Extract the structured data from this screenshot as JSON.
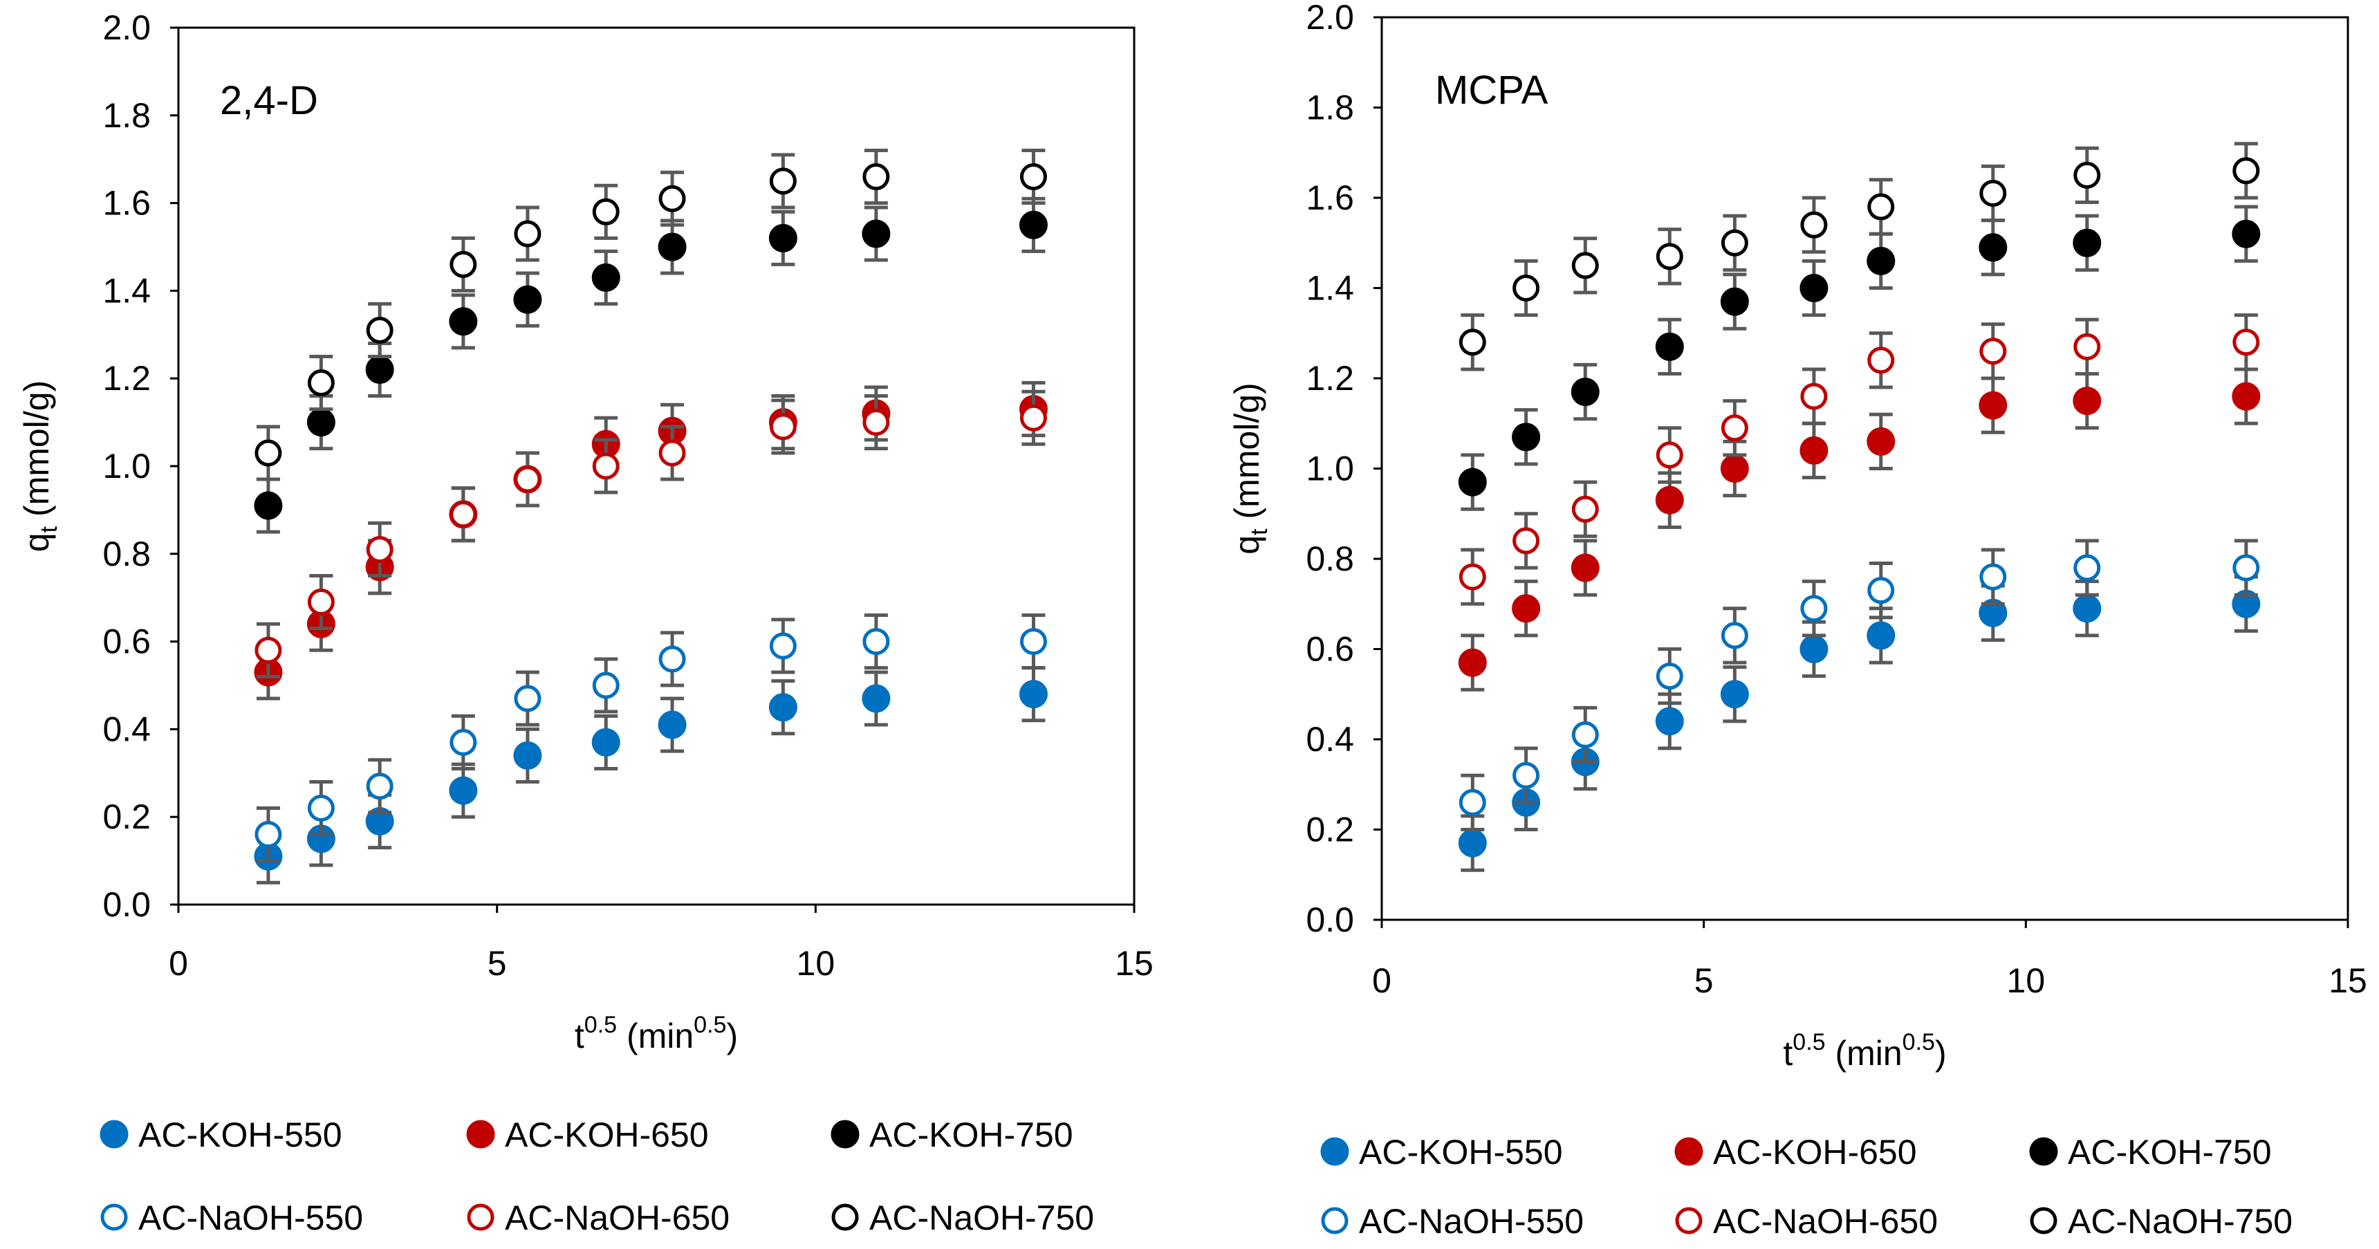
{
  "chart_data": [
    {
      "type": "scatter",
      "title": "2,4-D",
      "xlabel_base": "t",
      "xlabel_sup": "0.5",
      "xlabel_unit_open": " (min",
      "xlabel_unit_sup": "0.5",
      "xlabel_unit_close": ")",
      "ylabel_base": "q",
      "ylabel_sub": "t",
      "ylabel_unit": " (mmol/g)",
      "xlim": [
        0,
        15
      ],
      "ylim": [
        0,
        2.0
      ],
      "xticks": [
        "0",
        "5",
        "10",
        "15"
      ],
      "yticks": [
        "0.0",
        "0.2",
        "0.4",
        "0.6",
        "0.8",
        "1.0",
        "1.2",
        "1.4",
        "1.6",
        "1.8",
        "2.0"
      ],
      "x": [
        1.41,
        2.24,
        3.16,
        4.47,
        5.48,
        6.71,
        7.75,
        9.49,
        10.95,
        13.42
      ],
      "error": 0.06,
      "series": [
        {
          "name": "AC-KOH-550",
          "values": [
            0.11,
            0.15,
            0.19,
            0.26,
            0.34,
            0.37,
            0.41,
            0.45,
            0.47,
            0.48
          ]
        },
        {
          "name": "AC-KOH-650",
          "values": [
            0.53,
            0.64,
            0.77,
            0.89,
            0.97,
            1.05,
            1.08,
            1.1,
            1.12,
            1.13
          ]
        },
        {
          "name": "AC-KOH-750",
          "values": [
            0.91,
            1.1,
            1.22,
            1.33,
            1.38,
            1.43,
            1.5,
            1.52,
            1.53,
            1.55
          ]
        },
        {
          "name": "AC-NaOH-550",
          "values": [
            0.16,
            0.22,
            0.27,
            0.37,
            0.47,
            0.5,
            0.56,
            0.59,
            0.6,
            0.6
          ]
        },
        {
          "name": "AC-NaOH-650",
          "values": [
            0.58,
            0.69,
            0.81,
            0.89,
            0.97,
            1.0,
            1.03,
            1.09,
            1.1,
            1.11
          ]
        },
        {
          "name": "AC-NaOH-750",
          "values": [
            1.03,
            1.19,
            1.31,
            1.46,
            1.53,
            1.58,
            1.61,
            1.65,
            1.66,
            1.66
          ]
        }
      ]
    },
    {
      "type": "scatter",
      "title": "MCPA",
      "xlabel_base": "t",
      "xlabel_sup": "0.5",
      "xlabel_unit_open": " (min",
      "xlabel_unit_sup": "0.5",
      "xlabel_unit_close": ")",
      "ylabel_base": "q",
      "ylabel_sub": "t",
      "ylabel_unit": " (mmol/g)",
      "xlim": [
        0,
        15
      ],
      "ylim": [
        0,
        2.0
      ],
      "xticks": [
        "0",
        "5",
        "10",
        "15"
      ],
      "yticks": [
        "0.0",
        "0.2",
        "0.4",
        "0.6",
        "0.8",
        "1.0",
        "1.2",
        "1.4",
        "1.6",
        "1.8",
        "2.0"
      ],
      "x": [
        1.41,
        2.24,
        3.16,
        4.47,
        5.48,
        6.71,
        7.75,
        9.49,
        10.95,
        13.42
      ],
      "error": 0.06,
      "series": [
        {
          "name": "AC-KOH-550",
          "values": [
            0.17,
            0.26,
            0.35,
            0.44,
            0.5,
            0.6,
            0.63,
            0.68,
            0.69,
            0.7
          ]
        },
        {
          "name": "AC-KOH-650",
          "values": [
            0.57,
            0.69,
            0.78,
            0.93,
            1.0,
            1.04,
            1.06,
            1.14,
            1.15,
            1.16
          ]
        },
        {
          "name": "AC-KOH-750",
          "values": [
            0.97,
            1.07,
            1.17,
            1.27,
            1.37,
            1.4,
            1.46,
            1.49,
            1.5,
            1.52
          ]
        },
        {
          "name": "AC-NaOH-550",
          "values": [
            0.26,
            0.32,
            0.41,
            0.54,
            0.63,
            0.69,
            0.73,
            0.76,
            0.78,
            0.78
          ]
        },
        {
          "name": "AC-NaOH-650",
          "values": [
            0.76,
            0.84,
            0.91,
            1.03,
            1.09,
            1.16,
            1.24,
            1.26,
            1.27,
            1.28
          ]
        },
        {
          "name": "AC-NaOH-750",
          "values": [
            1.28,
            1.4,
            1.45,
            1.47,
            1.5,
            1.54,
            1.58,
            1.61,
            1.65,
            1.66
          ]
        }
      ]
    }
  ],
  "series_styles": [
    {
      "name": "AC-KOH-550",
      "color": "#0070c0",
      "filled": true
    },
    {
      "name": "AC-KOH-650",
      "color": "#c00000",
      "filled": true
    },
    {
      "name": "AC-KOH-750",
      "color": "#000000",
      "filled": true
    },
    {
      "name": "AC-NaOH-550",
      "color": "#0070c0",
      "filled": false
    },
    {
      "name": "AC-NaOH-650",
      "color": "#c00000",
      "filled": false
    },
    {
      "name": "AC-NaOH-750",
      "color": "#000000",
      "filled": false
    }
  ],
  "error_bar_color": "#595959"
}
